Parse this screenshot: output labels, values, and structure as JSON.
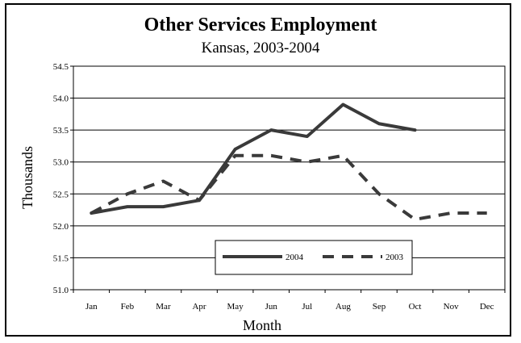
{
  "chart_data": {
    "type": "line",
    "title": "Other Services Employment",
    "subtitle": "Kansas, 2003-2004",
    "xlabel": "Month",
    "ylabel": "Thousands",
    "categories": [
      "Jan",
      "Feb",
      "Mar",
      "Apr",
      "May",
      "Jun",
      "Jul",
      "Aug",
      "Sep",
      "Oct",
      "Nov",
      "Dec"
    ],
    "ylim": [
      51.0,
      54.5
    ],
    "ytick_step": 0.5,
    "grid": "horizontal",
    "legend_position": "bottom-center",
    "series": [
      {
        "name": "2004",
        "style": "solid",
        "color": "#3a3a3a",
        "values": [
          52.2,
          52.3,
          52.3,
          52.4,
          53.2,
          53.5,
          53.4,
          53.9,
          53.6,
          53.5,
          null,
          null
        ]
      },
      {
        "name": "2003",
        "style": "dashed",
        "color": "#3a3a3a",
        "values": [
          52.2,
          52.5,
          52.7,
          52.4,
          53.1,
          53.1,
          53.0,
          53.1,
          52.5,
          52.1,
          52.2,
          52.2
        ]
      }
    ]
  }
}
